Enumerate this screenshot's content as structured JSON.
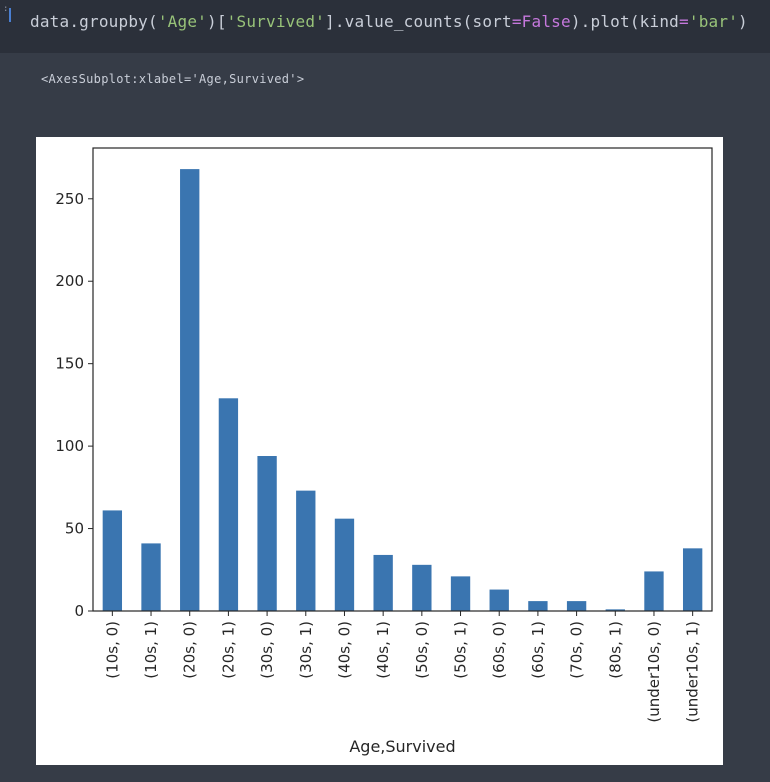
{
  "code_cell": {
    "prompt": ":",
    "code": {
      "p1": "data.groupby(",
      "s1": "'Age'",
      "p2": ")[",
      "s2": "'Survived'",
      "p3": "].value_counts(sort",
      "op1": "=",
      "k1": "False",
      "p4": ").plot(kind",
      "op2": "=",
      "s3": "'bar'",
      "p5": ")"
    }
  },
  "output": {
    "repr": "<AxesSubplot:xlabel='Age,Survived'>"
  },
  "colors": {
    "bar": "#3a75b0",
    "axis": "#262626",
    "background": "#ffffff"
  },
  "chart_data": {
    "type": "bar",
    "categories": [
      "(10s, 0)",
      "(10s, 1)",
      "(20s, 0)",
      "(20s, 1)",
      "(30s, 0)",
      "(30s, 1)",
      "(40s, 0)",
      "(40s, 1)",
      "(50s, 0)",
      "(50s, 1)",
      "(60s, 0)",
      "(60s, 1)",
      "(70s, 0)",
      "(80s, 1)",
      "(under10s, 0)",
      "(under10s, 1)"
    ],
    "values": [
      61,
      41,
      268,
      129,
      94,
      73,
      56,
      34,
      28,
      21,
      13,
      6,
      6,
      1,
      24,
      38
    ],
    "xlabel": "Age,Survived",
    "ylabel": "",
    "ylim": [
      0,
      280.8
    ],
    "yticks": [
      0,
      50,
      100,
      150,
      200,
      250
    ],
    "grid": false,
    "legend": "none"
  }
}
